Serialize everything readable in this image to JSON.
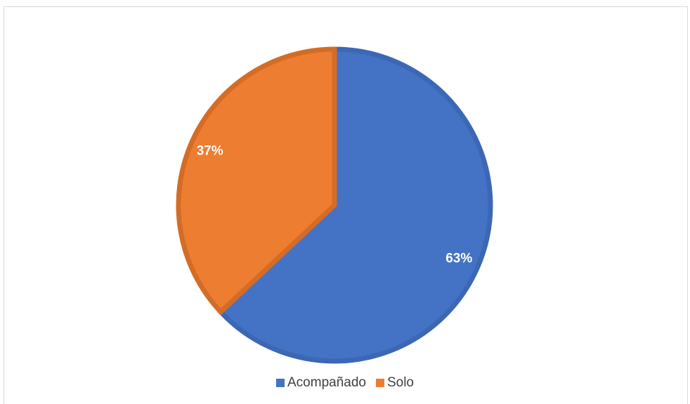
{
  "chart_data": {
    "type": "pie",
    "title": "",
    "categories": [
      "Acompañado",
      "Solo"
    ],
    "values": [
      63,
      37
    ],
    "data_labels": [
      "63%",
      "37%"
    ],
    "colors": [
      "#4472c4",
      "#ed7d31"
    ],
    "border_colors": [
      "#3c67b5",
      "#d46c26"
    ],
    "legend_position": "bottom"
  },
  "legend": {
    "items": [
      {
        "label": "Acompañado",
        "color": "#4472c4"
      },
      {
        "label": "Solo",
        "color": "#ed7d31"
      }
    ]
  }
}
